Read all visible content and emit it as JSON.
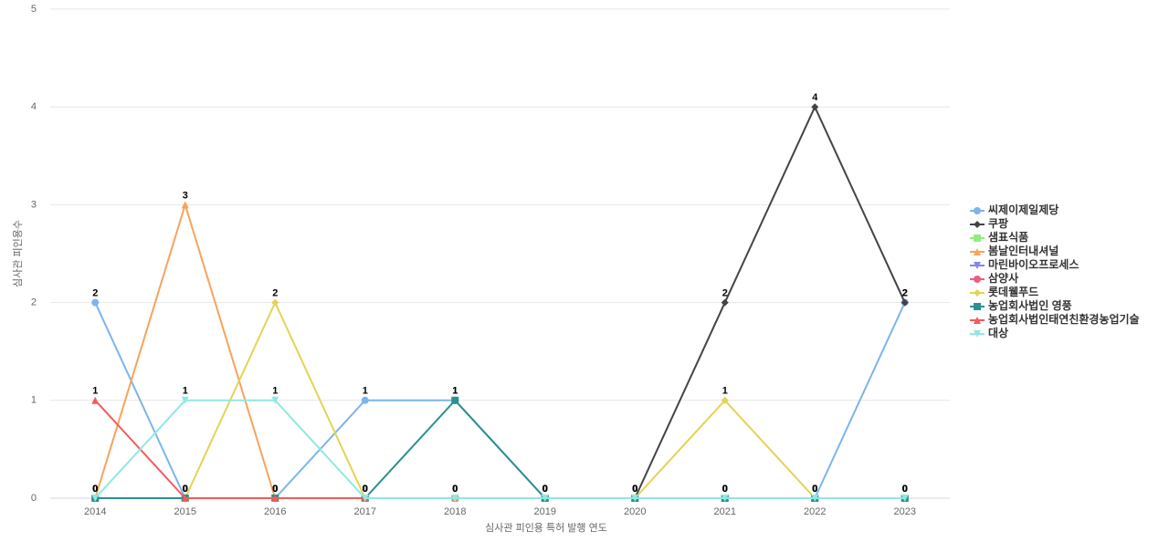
{
  "chart_data": {
    "type": "line",
    "x_label": "심사관 피인용 특허 발행 연도",
    "y_label": "심사관 피인용수",
    "categories": [
      "2014",
      "2015",
      "2016",
      "2017",
      "2018",
      "2019",
      "2020",
      "2021",
      "2022",
      "2023"
    ],
    "ylim": [
      0,
      5
    ],
    "yticks": [
      0,
      1,
      2,
      3,
      4,
      5
    ],
    "grid": true,
    "legend": "right",
    "series": [
      {
        "name": "씨제이제일제당",
        "color": "#7cb5ec",
        "marker": "circle",
        "values": [
          2,
          0,
          0,
          1,
          1,
          0,
          0,
          0,
          0,
          2
        ]
      },
      {
        "name": "쿠팡",
        "color": "#434348",
        "marker": "diamond",
        "values": [
          null,
          null,
          null,
          null,
          null,
          null,
          0,
          2,
          4,
          2
        ]
      },
      {
        "name": "샘표식품",
        "color": "#90ed7d",
        "marker": "square",
        "values": [
          0,
          0,
          0,
          0,
          0,
          0,
          0,
          0,
          0,
          0
        ]
      },
      {
        "name": "봄날인터내셔널",
        "color": "#f7a35c",
        "marker": "triangle",
        "values": [
          0,
          3,
          0,
          0,
          null,
          null,
          null,
          null,
          null,
          null
        ]
      },
      {
        "name": "마린바이오프로세스",
        "color": "#8085e9",
        "marker": "triangle-down",
        "values": [
          0,
          0,
          0,
          0,
          0,
          0,
          0,
          0,
          0,
          0
        ]
      },
      {
        "name": "삼양사",
        "color": "#f15c80",
        "marker": "circle",
        "values": [
          0,
          0,
          0,
          0,
          0,
          0,
          0,
          0,
          0,
          0
        ]
      },
      {
        "name": "롯데웰푸드",
        "color": "#e4d354",
        "marker": "diamond",
        "values": [
          null,
          0,
          2,
          0,
          0,
          0,
          0,
          1,
          0,
          null
        ]
      },
      {
        "name": "농업회사법인 영풍",
        "color": "#2b908f",
        "marker": "square",
        "values": [
          0,
          0,
          0,
          0,
          1,
          0,
          0,
          0,
          0,
          0
        ]
      },
      {
        "name": "농업회사법인태연친환경농업기술",
        "color": "#f45b5b",
        "marker": "triangle",
        "values": [
          1,
          0,
          0,
          0,
          null,
          null,
          null,
          null,
          null,
          null
        ]
      },
      {
        "name": "대상",
        "color": "#91e8e1",
        "marker": "triangle-down",
        "values": [
          0,
          1,
          1,
          0,
          0,
          0,
          0,
          0,
          0,
          0
        ]
      }
    ]
  }
}
